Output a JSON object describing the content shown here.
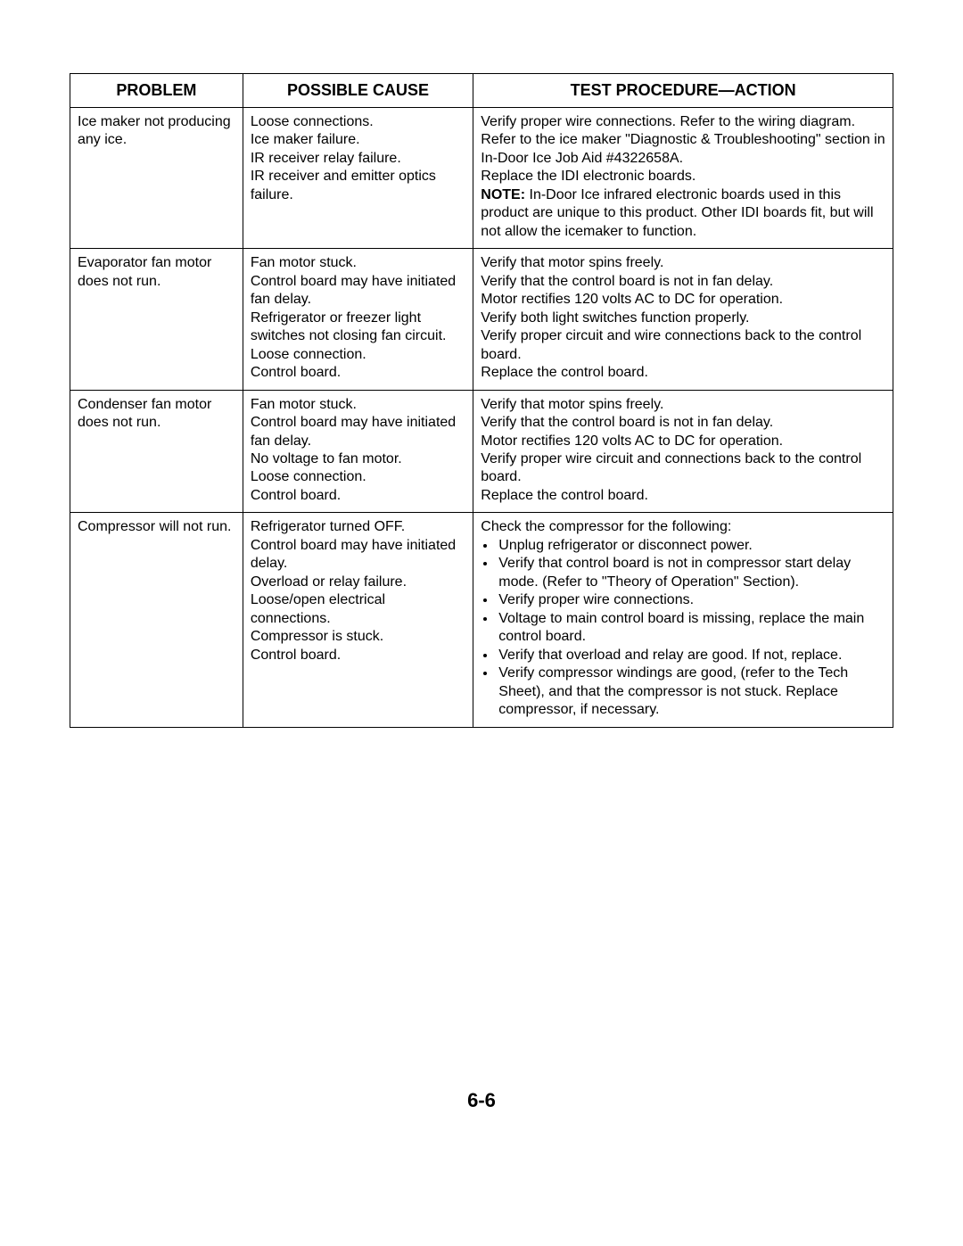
{
  "table": {
    "headers": {
      "problem": "PROBLEM",
      "cause": "POSSIBLE CAUSE",
      "action": "TEST PROCEDURE—ACTION"
    },
    "columns": {
      "c1_width": "21%",
      "c2_width": "28%",
      "c3_width": "51%"
    },
    "border_color": "#000000",
    "header_fontsize": 18,
    "body_fontsize": 16,
    "rows": [
      {
        "problem": "Ice maker not producing any ice.",
        "cause": "Loose connections.\nIce maker failure.\nIR receiver relay failure.\nIR receiver and emitter optics failure.",
        "action_pre": "Verify proper wire connections. Refer to the wiring diagram.\nRefer to the ice maker \"Diagnostic & Troubleshooting\" section in In-Door Ice Job Aid #4322658A.\nReplace the IDI electronic boards.",
        "action_note_label": "NOTE:",
        "action_note_body": " In-Door Ice infrared electronic boards used in this product are unique to this product. Other IDI boards fit, but will not allow the icemaker to function."
      },
      {
        "problem": "Evaporator fan motor does not run.",
        "cause": "Fan motor stuck.\nControl board may have initiated fan delay.\nRefrigerator or freezer light switches not closing fan circuit.\nLoose connection.\nControl board.",
        "action_pre": "Verify that motor spins freely.\nVerify that the control board is not in fan delay.\nMotor rectifies 120 volts AC to DC for operation.\nVerify both light switches function properly.\nVerify proper circuit and wire connections back to the control board.\nReplace the control board."
      },
      {
        "problem": "Condenser fan motor does not run.",
        "cause": "Fan motor stuck.\nControl board may have initiated fan delay.\nNo voltage to fan motor.\nLoose connection.\nControl board.",
        "action_pre": "Verify that motor spins freely.\nVerify that the control board is not in fan delay.\nMotor rectifies 120 volts AC to DC for operation.\nVerify proper wire circuit and connections back to the control board.\nReplace the control board."
      },
      {
        "problem": "Compressor will not run.",
        "cause": "Refrigerator turned OFF.\nControl board may have initiated delay.\nOverload or relay failure.\nLoose/open electrical connections.\nCompressor is stuck.\nControl board.",
        "action_pre": "Check the compressor for the following:",
        "action_bullets": [
          "Unplug refrigerator or disconnect power.",
          "Verify that control board is not in compressor start delay mode. (Refer to \"Theory of Operation\" Section).",
          "Verify proper wire connections.",
          "Voltage to main control board is missing, replace the main control board.",
          "Verify that overload and relay are good. If not, replace.",
          "Verify compressor windings are good, (refer to the Tech Sheet), and that the compressor is not stuck. Replace compressor, if necessary."
        ]
      }
    ]
  },
  "page_number": "6-6"
}
